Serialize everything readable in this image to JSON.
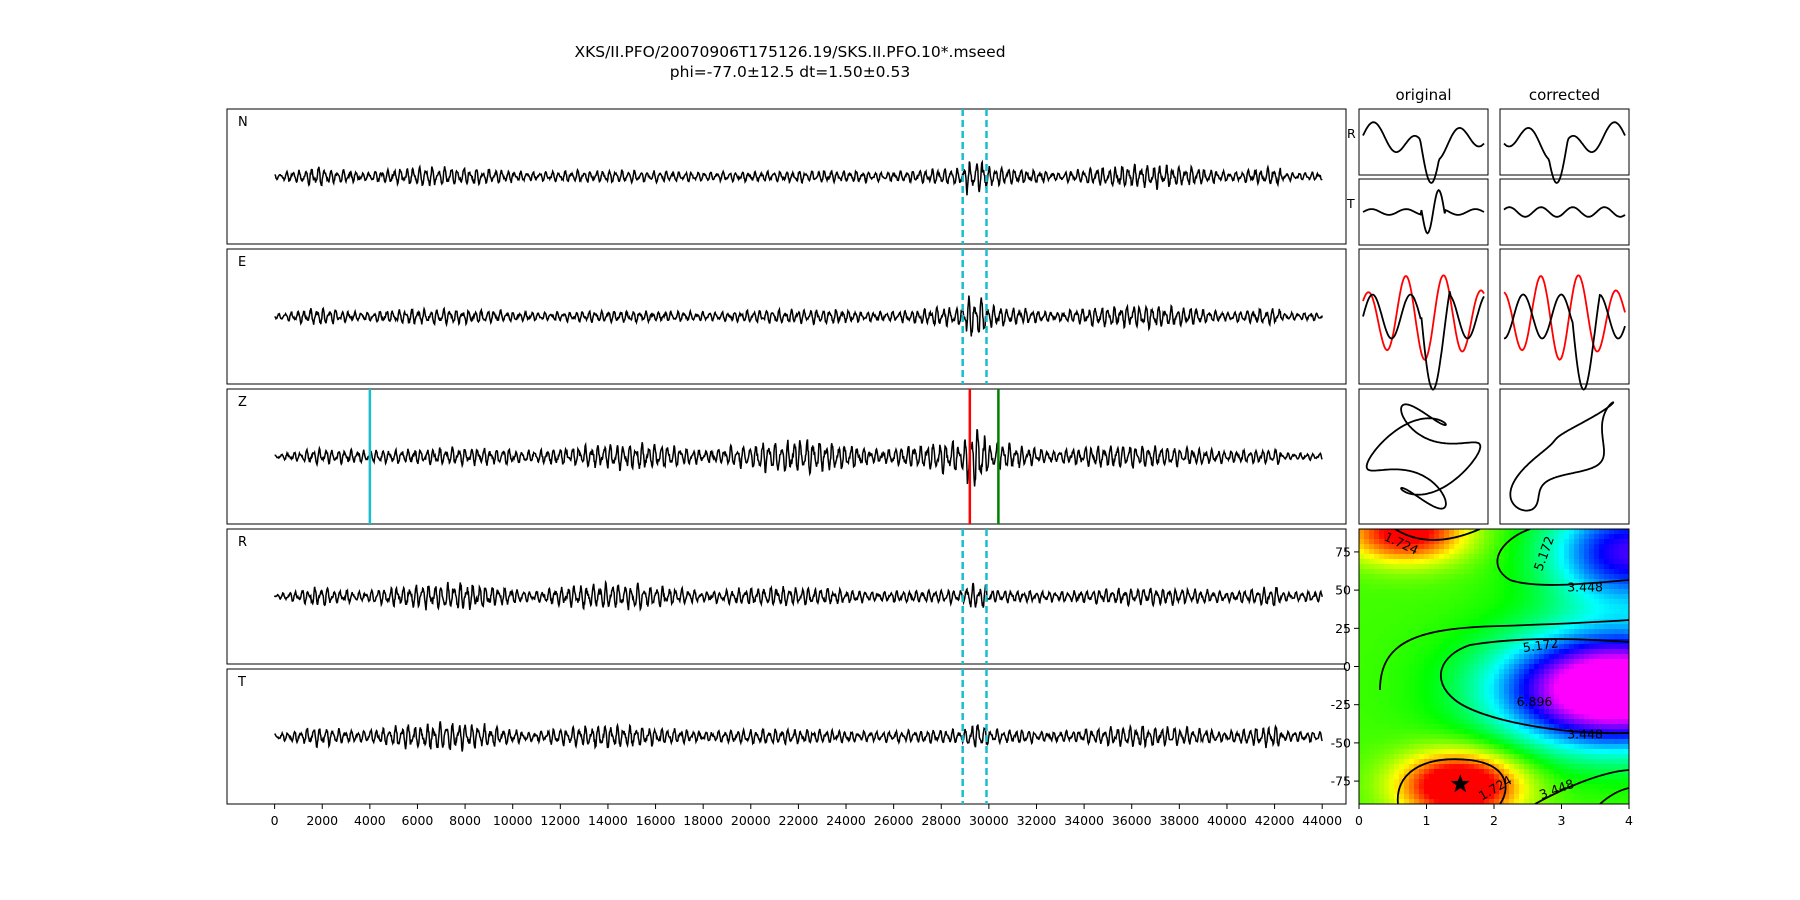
{
  "title": {
    "line1": "XKS/II.PFO/20070906T175126.19/SKS.II.PFO.10*.mseed",
    "line2": "phi=-77.0±12.5 dt=1.50±0.53"
  },
  "colors": {
    "trace": "#000000",
    "window_marker": "#17becf",
    "p_marker": "#17becf",
    "red_marker": "#ff0000",
    "green_marker": "#008000",
    "rotated_trace": "#ff0000"
  },
  "chart_data": [
    {
      "type": "line",
      "panels": [
        "N",
        "E",
        "Z",
        "R",
        "T"
      ],
      "xlim": [
        -2000,
        45000
      ],
      "xticks": [
        0,
        2000,
        4000,
        6000,
        8000,
        10000,
        12000,
        14000,
        16000,
        18000,
        20000,
        22000,
        24000,
        26000,
        28000,
        30000,
        32000,
        34000,
        36000,
        38000,
        40000,
        42000,
        44000
      ],
      "trace_x_range": [
        0,
        44000
      ],
      "window_dashed_lines_x": [
        28900,
        29900
      ],
      "dashed_line_panels": [
        "N",
        "E",
        "R",
        "T"
      ],
      "z_markers": [
        {
          "x": 4000,
          "color": "cyan"
        },
        {
          "x": 29200,
          "color": "red"
        },
        {
          "x": 30400,
          "color": "green"
        }
      ]
    },
    {
      "type": "line",
      "columns": [
        "original",
        "corrected"
      ],
      "rows": [
        "R",
        "T"
      ]
    },
    {
      "type": "heatmap",
      "description_values": {
        "best_dt": 1.5,
        "best_phi": -77.0
      },
      "xlim": [
        0,
        4
      ],
      "ylim": [
        -90,
        90
      ],
      "xticks": [
        0,
        1,
        2,
        3,
        4
      ],
      "yticks": [
        75,
        50,
        25,
        0,
        -25,
        -50,
        -75
      ],
      "contour_labels": [
        {
          "text": "1.724",
          "x": 0.6,
          "y": 78,
          "angle": 25
        },
        {
          "text": "5.172",
          "x": 2.8,
          "y": 73,
          "angle": -70
        },
        {
          "text": "3.448",
          "x": 3.35,
          "y": 49,
          "angle": 0
        },
        {
          "text": "5.172",
          "x": 2.7,
          "y": 11,
          "angle": -8
        },
        {
          "text": "6.896",
          "x": 2.6,
          "y": -26,
          "angle": 0
        },
        {
          "text": "3.448",
          "x": 3.35,
          "y": -47,
          "angle": 0
        },
        {
          "text": "1.724",
          "x": 2.05,
          "y": -82,
          "angle": -30
        },
        {
          "text": "3.448",
          "x": 2.95,
          "y": -83,
          "angle": -20
        }
      ],
      "star": {
        "dt": 1.5,
        "phi": -77
      }
    }
  ]
}
